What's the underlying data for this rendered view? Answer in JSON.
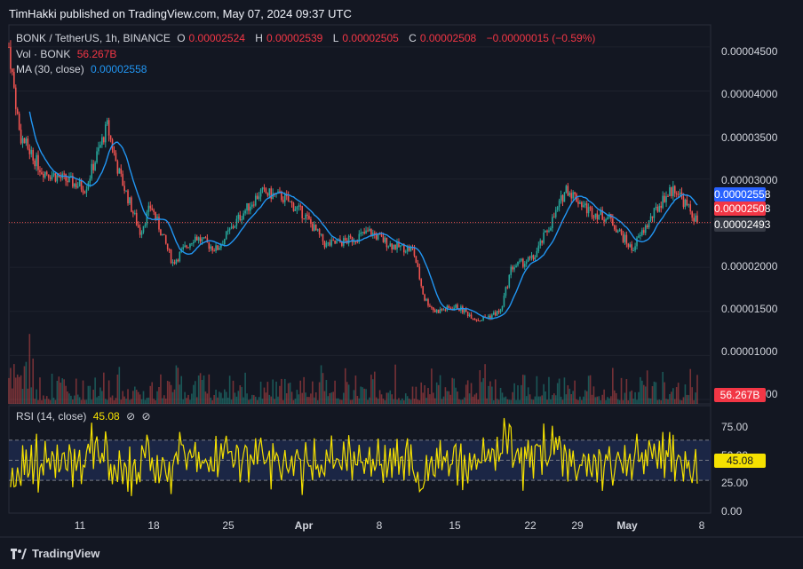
{
  "header": {
    "publisher_line": "TimHakki published on TradingView.com, May 07, 2024 09:37 UTC"
  },
  "legend": {
    "symbol": "BONK / TetherUS, 1h, BINANCE",
    "ohlc": [
      {
        "key": "O",
        "value": "0.00002524"
      },
      {
        "key": "H",
        "value": "0.00002539"
      },
      {
        "key": "L",
        "value": "0.00002505"
      },
      {
        "key": "C",
        "value": "0.00002508"
      }
    ],
    "change": "−0.00000015 (−0.59%)",
    "vol_label": "Vol · BONK",
    "vol_value": "56.267B",
    "ma_label": "MA (30, close)",
    "ma_value": "0.00002558"
  },
  "rsi_legend": {
    "label": "RSI (14, close)",
    "value": "45.08",
    "icons": [
      "⊘",
      "⊘"
    ]
  },
  "price_axis": {
    "ticks": [
      "0.00004500",
      "0.00004000",
      "0.00003500",
      "0.00003000",
      "0.00002000",
      "0.00001500",
      "0.00001000",
      "0.00000500"
    ],
    "tags": {
      "ma": "0.00002558",
      "close": "0.00002508",
      "crosshair": "0.00002493",
      "volume": "56.267B"
    }
  },
  "rsi_axis": {
    "ticks": [
      "75.00",
      "50.00",
      "25.00",
      "0.00"
    ],
    "tag": "45.08"
  },
  "time_axis": {
    "ticks": [
      "11",
      "18",
      "25",
      "Apr",
      "8",
      "15",
      "22",
      "29",
      "May",
      "8"
    ]
  },
  "brand": {
    "name": "TradingView"
  },
  "colors": {
    "background": "#131722",
    "up": "#26a69a",
    "down": "#ef5350",
    "ma": "#2962ff",
    "rsi": "#f5e100",
    "rsi_band": "#1e2a4f",
    "close_tag": "#f23645",
    "ma_tag": "#2962ff",
    "crosshair_tag": "#363a45"
  },
  "chart_data": {
    "type": "candlestick",
    "title": "BONK / TetherUS, 1h, BINANCE",
    "x_range": [
      "2024-03-05",
      "2024-05-07"
    ],
    "y_range": [
      5e-06,
      4.7e-05
    ],
    "close_price_path": [
      {
        "date": "2024-03-05",
        "close": 4.5e-05
      },
      {
        "date": "2024-03-06",
        "close": 3.5e-05
      },
      {
        "date": "2024-03-08",
        "close": 3.1e-05
      },
      {
        "date": "2024-03-10",
        "close": 3e-05
      },
      {
        "date": "2024-03-12",
        "close": 2.9e-05
      },
      {
        "date": "2024-03-14",
        "close": 3.6e-05
      },
      {
        "date": "2024-03-15",
        "close": 3.1e-05
      },
      {
        "date": "2024-03-17",
        "close": 2.4e-05
      },
      {
        "date": "2024-03-18",
        "close": 2.7e-05
      },
      {
        "date": "2024-03-20",
        "close": 2.05e-05
      },
      {
        "date": "2024-03-22",
        "close": 2.35e-05
      },
      {
        "date": "2024-03-24",
        "close": 2.2e-05
      },
      {
        "date": "2024-03-26",
        "close": 2.55e-05
      },
      {
        "date": "2024-03-28",
        "close": 2.85e-05
      },
      {
        "date": "2024-03-30",
        "close": 2.8e-05
      },
      {
        "date": "2024-04-01",
        "close": 2.6e-05
      },
      {
        "date": "2024-04-03",
        "close": 2.25e-05
      },
      {
        "date": "2024-04-05",
        "close": 2.3e-05
      },
      {
        "date": "2024-04-07",
        "close": 2.4e-05
      },
      {
        "date": "2024-04-09",
        "close": 2.25e-05
      },
      {
        "date": "2024-04-11",
        "close": 2.2e-05
      },
      {
        "date": "2024-04-12",
        "close": 1.65e-05
      },
      {
        "date": "2024-04-13",
        "close": 1.5e-05
      },
      {
        "date": "2024-04-15",
        "close": 1.55e-05
      },
      {
        "date": "2024-04-17",
        "close": 1.4e-05
      },
      {
        "date": "2024-04-19",
        "close": 1.5e-05
      },
      {
        "date": "2024-04-20",
        "close": 2e-05
      },
      {
        "date": "2024-04-22",
        "close": 2.1e-05
      },
      {
        "date": "2024-04-24",
        "close": 2.6e-05
      },
      {
        "date": "2024-04-25",
        "close": 2.9e-05
      },
      {
        "date": "2024-04-27",
        "close": 2.65e-05
      },
      {
        "date": "2024-04-29",
        "close": 2.55e-05
      },
      {
        "date": "2024-05-01",
        "close": 2.2e-05
      },
      {
        "date": "2024-05-02",
        "close": 2.4e-05
      },
      {
        "date": "2024-05-04",
        "close": 2.8e-05
      },
      {
        "date": "2024-05-05",
        "close": 2.9e-05
      },
      {
        "date": "2024-05-06",
        "close": 2.7e-05
      },
      {
        "date": "2024-05-07",
        "close": 2.508e-05
      }
    ],
    "ma_period": 30,
    "rsi_period": 14,
    "rsi_levels": [
      70,
      50,
      30
    ],
    "rsi_last": 45.08,
    "volume_last": "56.267B"
  }
}
